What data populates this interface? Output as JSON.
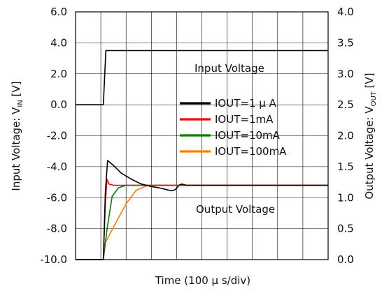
{
  "chart_data": {
    "type": "line",
    "xlabel": "Time (100 μ s/div)",
    "ylabel_left": "Input Voltage: V",
    "ylabel_left_sub": "IN",
    "ylabel_left_unit": " [V]",
    "ylabel_right": "Output Voltage: V",
    "ylabel_right_sub": "OUT",
    "ylabel_right_unit": " [V]",
    "ylim_left": [
      -10,
      6
    ],
    "ylim_right": [
      0,
      4
    ],
    "xlim": [
      0,
      10
    ],
    "x_divisions": 10,
    "grid": true,
    "left_ticks": [
      "-10.0",
      "-8.0",
      "-6.0",
      "-4.0",
      "-2.0",
      "0.0",
      "2.0",
      "4.0",
      "6.0"
    ],
    "right_ticks": [
      "0.0",
      "0.5",
      "1.0",
      "1.5",
      "2.0",
      "2.5",
      "3.0",
      "3.5",
      "4.0"
    ],
    "annotations": {
      "input_voltage": "Input Voltage",
      "output_voltage": "Output Voltage"
    },
    "input_series": {
      "name": "Input Voltage",
      "axis": "left",
      "color": "#000000",
      "points": [
        [
          0,
          0
        ],
        [
          1.1,
          0
        ],
        [
          1.2,
          3.5
        ],
        [
          10,
          3.5
        ]
      ]
    },
    "series": [
      {
        "name": "IOUT=1 μ A",
        "axis": "right",
        "color": "#000000",
        "points": [
          [
            0,
            0
          ],
          [
            1.1,
            0
          ],
          [
            1.18,
            1.1
          ],
          [
            1.27,
            1.6
          ],
          [
            1.5,
            1.52
          ],
          [
            1.8,
            1.4
          ],
          [
            2.2,
            1.3
          ],
          [
            2.6,
            1.22
          ],
          [
            3.0,
            1.18
          ],
          [
            3.3,
            1.16
          ],
          [
            3.6,
            1.13
          ],
          [
            3.8,
            1.11
          ],
          [
            3.95,
            1.13
          ],
          [
            4.1,
            1.2
          ],
          [
            4.2,
            1.22
          ],
          [
            4.4,
            1.2
          ],
          [
            10,
            1.2
          ]
        ]
      },
      {
        "name": "IOUT=1mA",
        "axis": "right",
        "color": "#ff0000",
        "points": [
          [
            0,
            0
          ],
          [
            1.1,
            0
          ],
          [
            1.18,
            0.9
          ],
          [
            1.24,
            1.3
          ],
          [
            1.32,
            1.22
          ],
          [
            1.5,
            1.2
          ],
          [
            10,
            1.2
          ]
        ]
      },
      {
        "name": "IOUT=10mA",
        "axis": "right",
        "color": "#008000",
        "points": [
          [
            0,
            0
          ],
          [
            1.1,
            0
          ],
          [
            1.25,
            0.5
          ],
          [
            1.45,
            1.02
          ],
          [
            1.7,
            1.16
          ],
          [
            2.0,
            1.2
          ],
          [
            10,
            1.2
          ]
        ]
      },
      {
        "name": "IOUT=100mA",
        "axis": "right",
        "color": "#ff8000",
        "points": [
          [
            0,
            0
          ],
          [
            1.1,
            0
          ],
          [
            1.15,
            0.25
          ],
          [
            1.6,
            0.6
          ],
          [
            2.0,
            0.9
          ],
          [
            2.4,
            1.12
          ],
          [
            2.8,
            1.19
          ],
          [
            3.2,
            1.2
          ],
          [
            10,
            1.2
          ]
        ]
      }
    ],
    "legend_placement": "center-right"
  }
}
